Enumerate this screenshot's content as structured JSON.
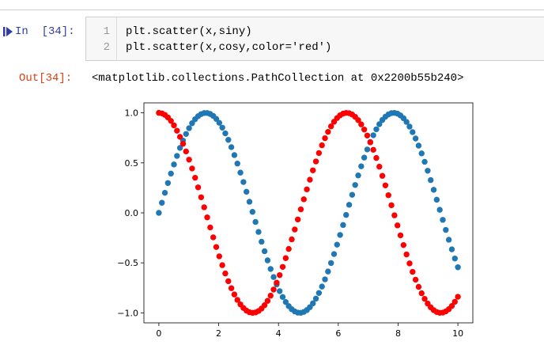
{
  "cell": {
    "in_prompt": "In  [34]:",
    "out_prompt": "Out[34]:",
    "lines": [
      {
        "number": "1",
        "code": "plt.scatter(x,siny)"
      },
      {
        "number": "2",
        "code": "plt.scatter(x,cosy,color='red')"
      }
    ],
    "output_text": "<matplotlib.collections.PathCollection at 0x2200b55b240>"
  },
  "chart_data": {
    "type": "scatter",
    "xlim": [
      -0.5,
      10.5
    ],
    "ylim": [
      -1.1,
      1.1
    ],
    "x_ticks": [
      "0",
      "2",
      "4",
      "6",
      "8",
      "10"
    ],
    "y_ticks": [
      "1.0",
      "0.5",
      "0.0",
      "−0.5",
      "−1.0"
    ],
    "grid": false,
    "x_range": [
      0,
      10
    ],
    "point_count": 100,
    "series": [
      {
        "function": "sin(x)",
        "color": "#1f77b4"
      },
      {
        "function": "cos(x)",
        "color": "#ff0000"
      }
    ]
  }
}
